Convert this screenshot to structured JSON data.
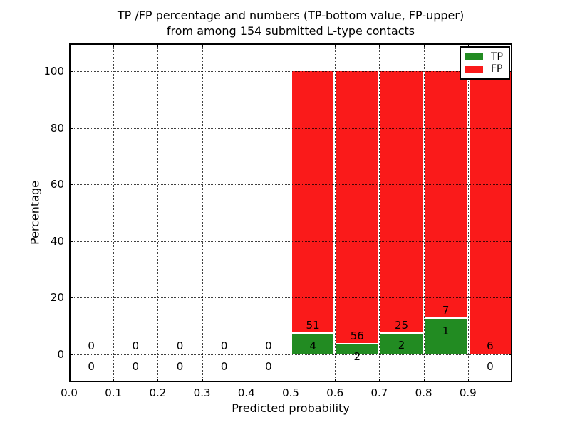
{
  "figure": {
    "title_line1": "TP /FP percentage and numbers (TP-bottom value, FP-upper)",
    "title_line2": "from among 154 submitted L-type contacts"
  },
  "axes": {
    "x_label": "Predicted probability",
    "y_label": "Percentage",
    "x_tick_labels": [
      "0.0",
      "0.1",
      "0.2",
      "0.3",
      "0.4",
      "0.5",
      "0.6",
      "0.7",
      "0.8",
      "0.9"
    ],
    "y_tick_labels": [
      "0",
      "20",
      "40",
      "60",
      "80",
      "100"
    ]
  },
  "legend": {
    "items": [
      {
        "label": "TP",
        "color": "#228b22"
      },
      {
        "label": "FP",
        "color": "#fa1a1a"
      }
    ]
  },
  "chart_data": {
    "type": "bar",
    "stacked": true,
    "title": "TP /FP percentage and numbers (TP-bottom value, FP-upper) from among 154 submitted L-type contacts",
    "xlabel": "Predicted probability",
    "ylabel": "Percentage",
    "xlim": [
      0.0,
      1.0
    ],
    "ylim": [
      -10,
      110
    ],
    "grid": "dotted",
    "legend_position": "upper right",
    "total_contacts": 154,
    "bin_edges": [
      0.0,
      0.1,
      0.2,
      0.3,
      0.4,
      0.5,
      0.6,
      0.7,
      0.8,
      0.9,
      1.0
    ],
    "series": [
      {
        "name": "TP",
        "color": "#228b22",
        "counts": [
          0,
          0,
          0,
          0,
          0,
          4,
          2,
          2,
          1,
          0
        ],
        "percent": [
          0,
          0,
          0,
          0,
          0,
          7.2727,
          3.4483,
          7.4074,
          12.5,
          0
        ]
      },
      {
        "name": "FP",
        "color": "#fa1a1a",
        "counts": [
          0,
          0,
          0,
          0,
          0,
          51,
          56,
          25,
          7,
          6
        ],
        "percent": [
          0,
          0,
          0,
          0,
          0,
          92.7273,
          96.5517,
          92.5926,
          87.5,
          100
        ]
      }
    ]
  }
}
